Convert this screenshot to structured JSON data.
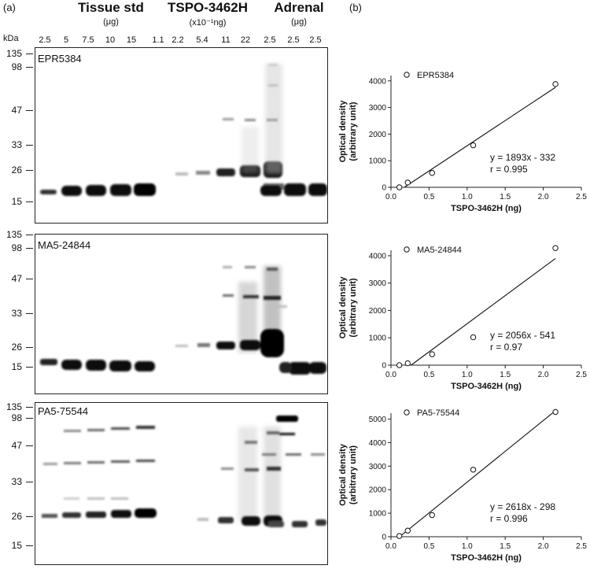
{
  "panel_a_label": "(a)",
  "panel_b_label": "(b)",
  "kda_header": "kDa",
  "groups": [
    {
      "title": "Tissue std",
      "unit": "(μg)"
    },
    {
      "title": "TSPO-3462H",
      "unit": "(x10⁻¹ng)"
    },
    {
      "title": "Adrenal",
      "unit": "(μg)"
    }
  ],
  "lanes": [
    "2.5",
    "5",
    "7.5",
    "10",
    "15",
    "1.1",
    "2.2",
    "5.4",
    "11",
    "22",
    "2.5",
    "2.5",
    "2.5"
  ],
  "blots": [
    {
      "antibody": "EPR5384",
      "markers": [
        "135",
        "98",
        "47",
        "33",
        "26",
        "15"
      ]
    },
    {
      "antibody": "MA5-24844",
      "markers": [
        "135",
        "98",
        "47",
        "33",
        "26",
        "15"
      ]
    },
    {
      "antibody": "PA5-75544",
      "markers": [
        "135",
        "98",
        "47",
        "33",
        "26",
        "15"
      ]
    }
  ],
  "chart_data": [
    {
      "type": "scatter",
      "legend": "EPR5384",
      "equation": "y = 1893x - 332",
      "r_text": "r = 0.995",
      "xlabel": "TSPO-3462H (ng)",
      "ylabel": "Optical density (arbitrary unit)",
      "xlim": [
        0,
        2.5
      ],
      "ylim": [
        0,
        4000
      ],
      "xticks": [
        "0.0",
        "0.5",
        "1.0",
        "1.5",
        "2.0",
        "2.5"
      ],
      "yticks": [
        "0",
        "1000",
        "2000",
        "3000",
        "4000"
      ],
      "x": [
        0.11,
        0.22,
        0.54,
        1.08,
        2.16
      ],
      "y": [
        0,
        180,
        540,
        1580,
        3880
      ],
      "fit": {
        "slope": 1893,
        "intercept": -332
      }
    },
    {
      "type": "scatter",
      "legend": "MA5-24844",
      "equation": "y = 2056x - 541",
      "r_text": "r = 0.97",
      "xlabel": "TSPO-3462H (ng)",
      "ylabel": "Optical density (arbitrary unit)",
      "xlim": [
        0,
        2.5
      ],
      "ylim": [
        0,
        4000
      ],
      "xticks": [
        "0.0",
        "0.5",
        "1.0",
        "1.5",
        "2.0",
        "2.5"
      ],
      "yticks": [
        "0",
        "1000",
        "2000",
        "3000",
        "4000"
      ],
      "x": [
        0.11,
        0.22,
        0.54,
        1.08,
        2.16
      ],
      "y": [
        0,
        70,
        400,
        1020,
        4280
      ],
      "fit": {
        "slope": 2056,
        "intercept": -541
      }
    },
    {
      "type": "scatter",
      "legend": "PA5-75544",
      "equation": "y = 2618x - 298",
      "r_text": "r = 0.996",
      "xlabel": "TSPO-3462H (ng)",
      "ylabel": "Optical density (arbitrary unit)",
      "xlim": [
        0,
        2.5
      ],
      "ylim": [
        0,
        5000
      ],
      "xticks": [
        "0.0",
        "0.5",
        "1.0",
        "1.5",
        "2.0",
        "2.5"
      ],
      "yticks": [
        "0",
        "1000",
        "2000",
        "3000",
        "4000",
        "5000"
      ],
      "x": [
        0.11,
        0.22,
        0.54,
        1.08,
        2.16
      ],
      "y": [
        30,
        260,
        920,
        2850,
        5300
      ],
      "fit": {
        "slope": 2618,
        "intercept": -298
      }
    }
  ]
}
